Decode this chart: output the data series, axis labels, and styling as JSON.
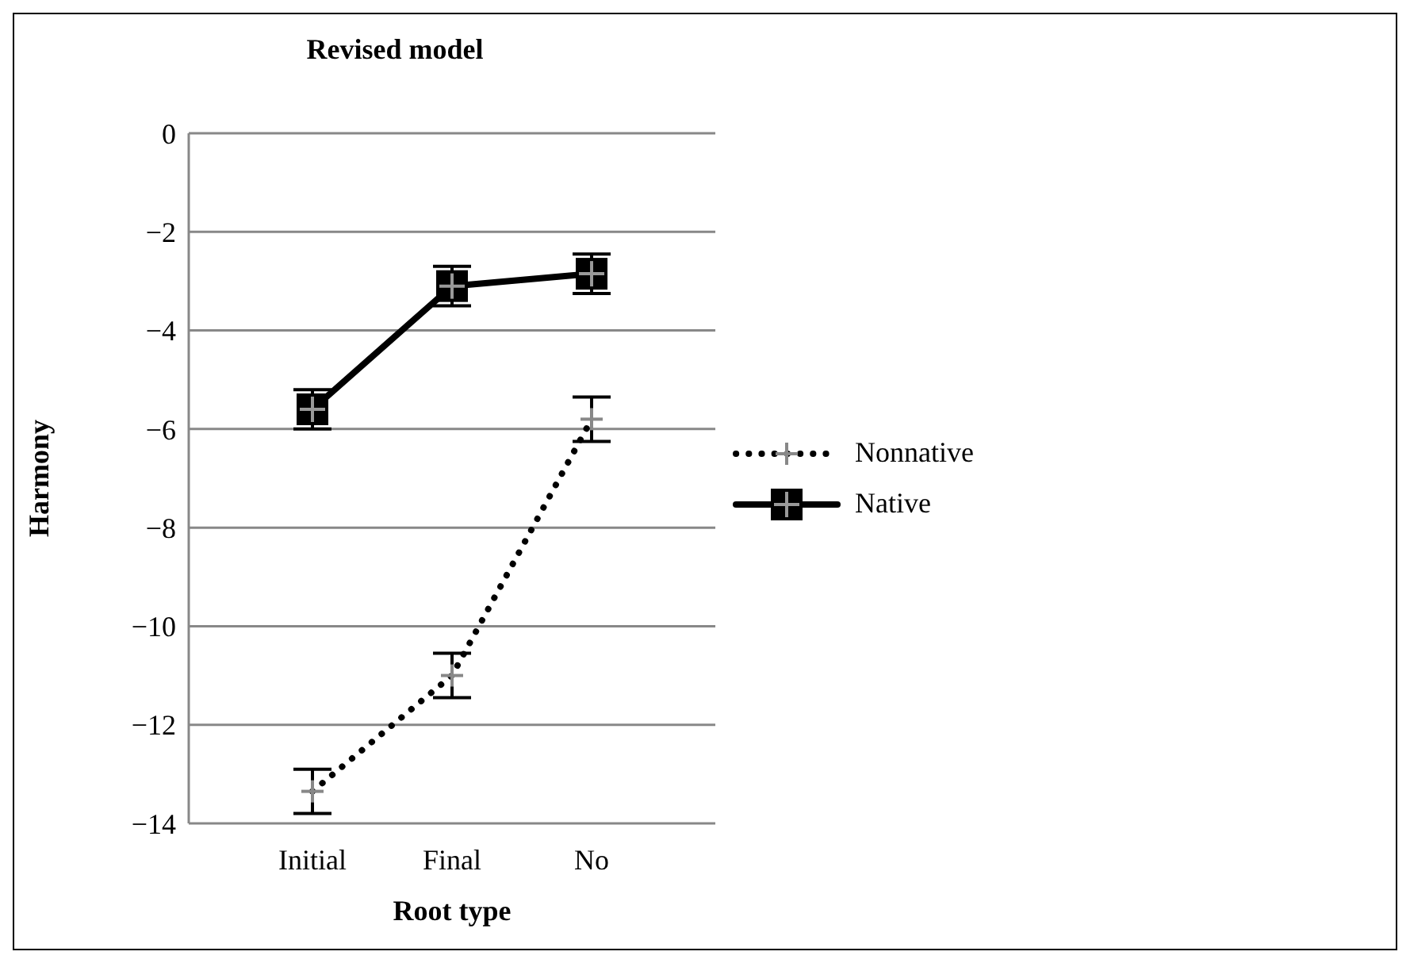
{
  "chart_data": {
    "type": "line",
    "title": "Revised model",
    "xlabel": "Root type",
    "ylabel": "Harmony",
    "categories": [
      "Initial",
      "Final",
      "No"
    ],
    "series": [
      {
        "name": "Nonnative",
        "color": "#000000",
        "values": [
          -13.35,
          -11.0,
          -5.8
        ],
        "errors": [
          0.45,
          0.45,
          0.45
        ],
        "marker": "cross",
        "line_style": "dotted"
      },
      {
        "name": "Native",
        "color": "#000000",
        "values": [
          -5.6,
          -3.1,
          -2.85
        ],
        "errors": [
          0.4,
          0.4,
          0.4
        ],
        "marker": "square",
        "line_style": "solid"
      }
    ],
    "ylim": [
      -14,
      0
    ],
    "yticks": [
      0,
      -2,
      -4,
      -6,
      -8,
      -10,
      -12,
      -14
    ],
    "grid": "y",
    "legend": "right"
  }
}
